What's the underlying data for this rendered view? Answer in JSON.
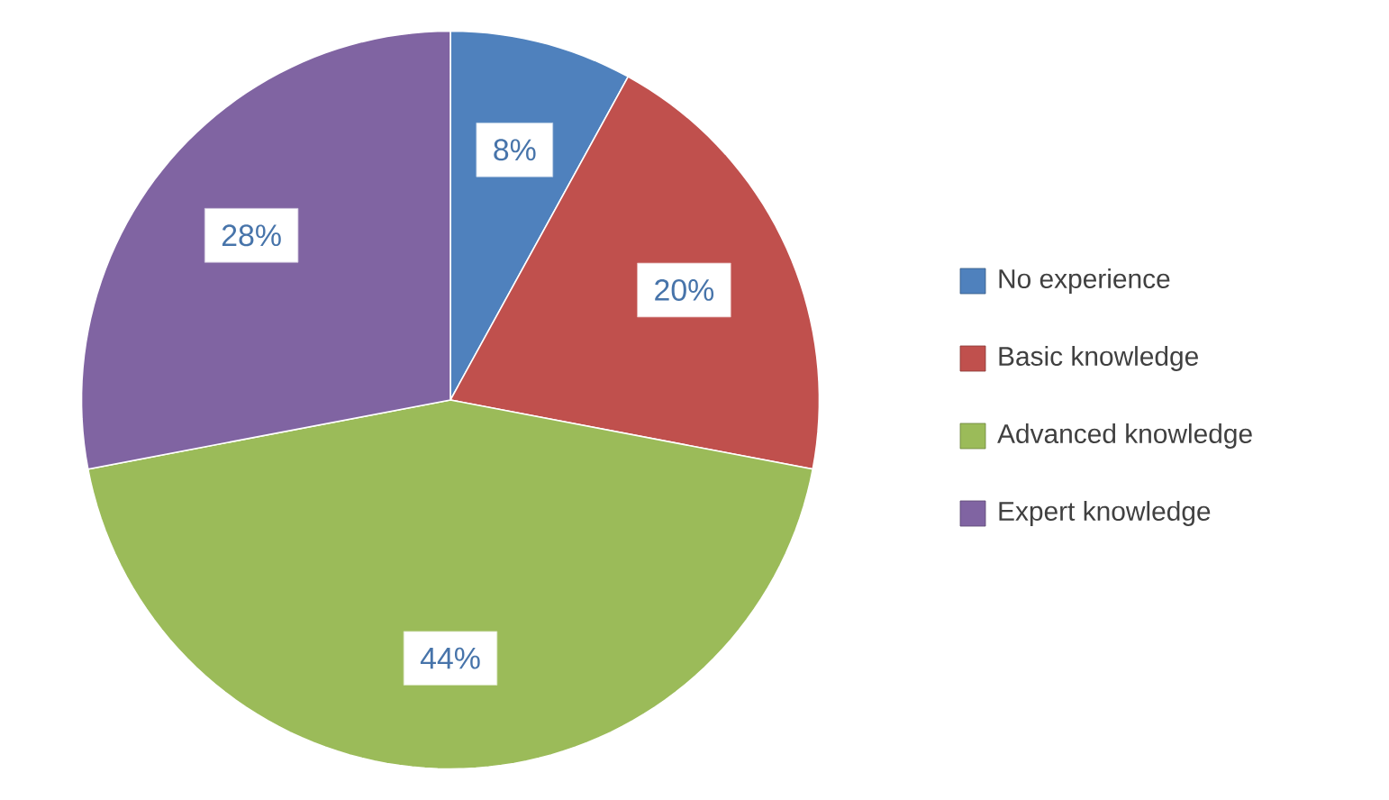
{
  "chart_data": {
    "type": "pie",
    "categories": [
      "No experience",
      "Basic knowledge",
      "Advanced knowledge",
      "Expert knowledge"
    ],
    "values": [
      8,
      20,
      44,
      28
    ],
    "value_labels": [
      "8%",
      "20%",
      "44%",
      "28%"
    ],
    "colors": [
      "#4f81bd",
      "#c0504d",
      "#9bbb59",
      "#8064a2"
    ],
    "legend": "right"
  }
}
